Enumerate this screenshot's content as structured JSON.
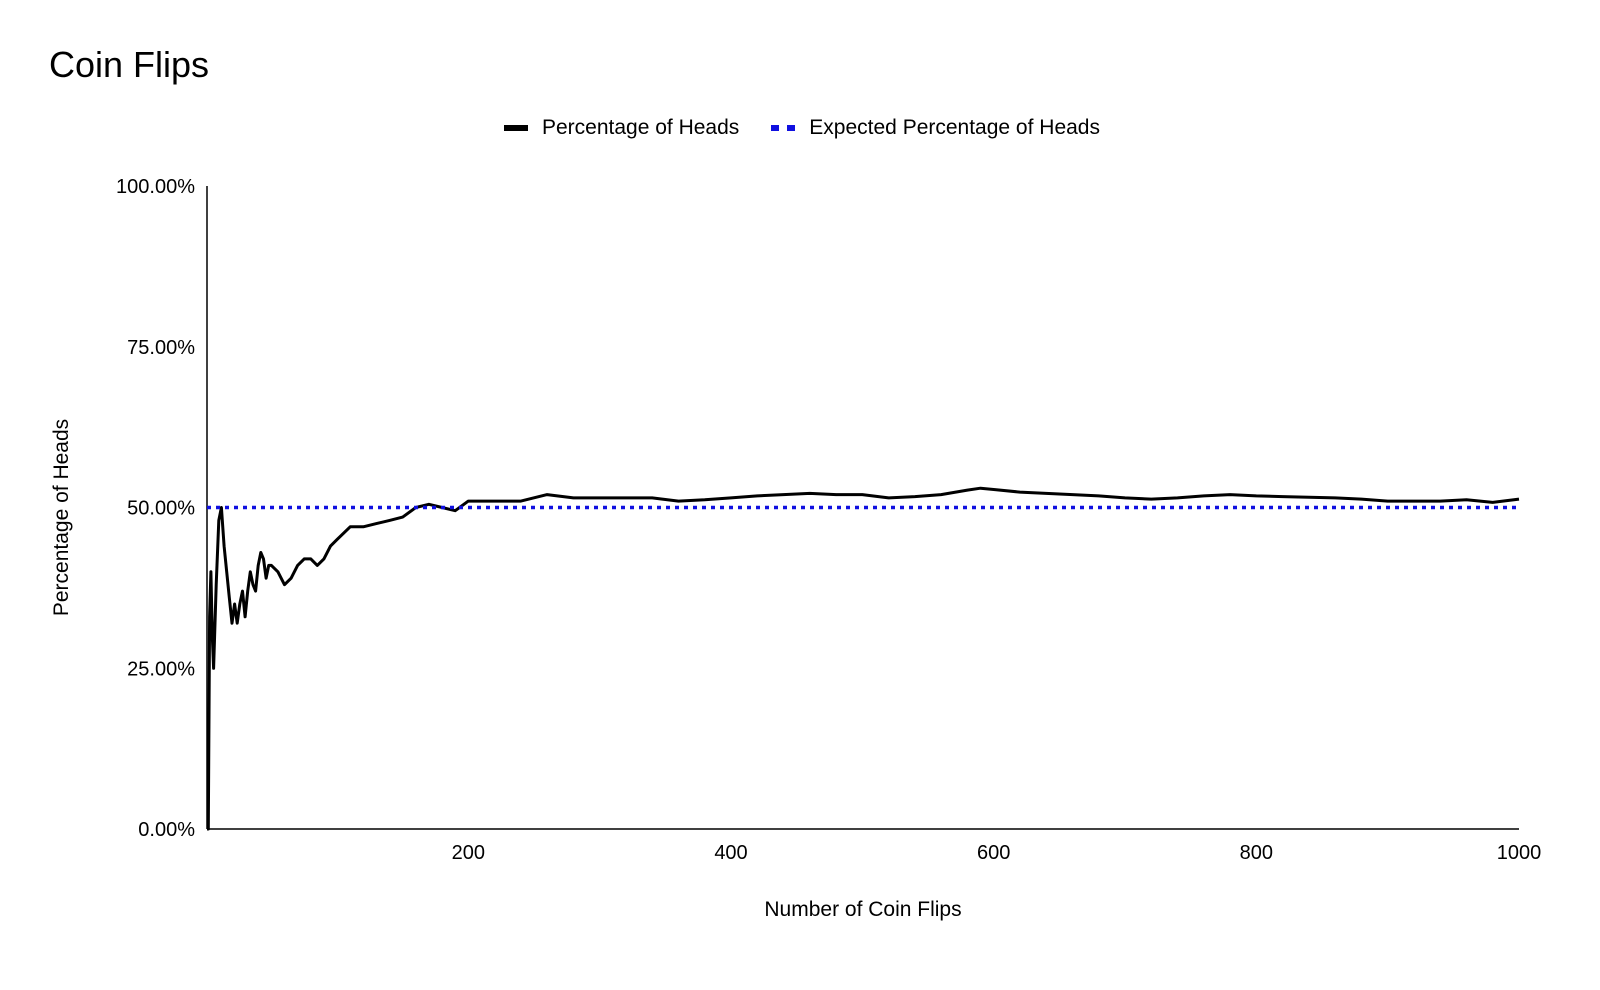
{
  "chart_data": {
    "type": "line",
    "title": "Coin Flips",
    "xlabel": "Number of Coin Flips",
    "ylabel": "Percentage of Heads",
    "xlim": [
      1,
      1000
    ],
    "ylim": [
      0,
      100
    ],
    "x_ticks": [
      200,
      400,
      600,
      800,
      1000
    ],
    "y_ticks": [
      0,
      25,
      50,
      75,
      100
    ],
    "y_tick_labels": [
      "0.00%",
      "25.00%",
      "50.00%",
      "75.00%",
      "100.00%"
    ],
    "grid": false,
    "legend": "top-center",
    "series": [
      {
        "name": "Percentage of Heads",
        "color": "#000000",
        "style": "solid",
        "x": [
          1,
          2,
          3,
          4,
          5,
          6,
          8,
          10,
          12,
          14,
          16,
          18,
          20,
          22,
          24,
          26,
          28,
          30,
          32,
          34,
          36,
          38,
          40,
          42,
          44,
          46,
          48,
          50,
          55,
          60,
          65,
          70,
          75,
          80,
          85,
          90,
          95,
          100,
          110,
          120,
          130,
          140,
          150,
          160,
          170,
          180,
          190,
          200,
          210,
          220,
          240,
          260,
          280,
          300,
          320,
          340,
          360,
          380,
          400,
          420,
          440,
          460,
          480,
          500,
          520,
          540,
          560,
          580,
          590,
          600,
          620,
          640,
          660,
          680,
          700,
          720,
          740,
          760,
          780,
          800,
          820,
          840,
          860,
          880,
          900,
          920,
          940,
          960,
          980,
          1000
        ],
        "values": [
          0,
          0,
          33,
          40,
          30,
          25,
          38,
          48,
          50,
          44,
          40,
          36,
          32,
          35,
          32,
          35,
          37,
          33,
          37,
          40,
          38,
          37,
          41,
          43,
          42,
          39,
          41,
          41,
          40,
          38,
          39,
          41,
          42,
          42,
          41,
          42,
          44,
          45,
          47,
          47,
          47.5,
          48,
          48.5,
          50,
          50.5,
          50,
          49.5,
          51,
          51,
          51,
          51,
          52,
          51.5,
          51.5,
          51.5,
          51.5,
          51,
          51.2,
          51.5,
          51.8,
          52,
          52.2,
          52,
          52,
          51.5,
          51.7,
          52,
          52.7,
          53,
          52.8,
          52.4,
          52.2,
          52,
          51.8,
          51.5,
          51.3,
          51.5,
          51.8,
          52,
          51.8,
          51.7,
          51.6,
          51.5,
          51.3,
          51,
          51,
          51,
          51.2,
          50.8,
          51.3
        ]
      },
      {
        "name": "Expected Percentage of Heads",
        "color": "#1010e0",
        "style": "dotted",
        "x": [
          1,
          1000
        ],
        "values": [
          50,
          50
        ]
      }
    ]
  }
}
